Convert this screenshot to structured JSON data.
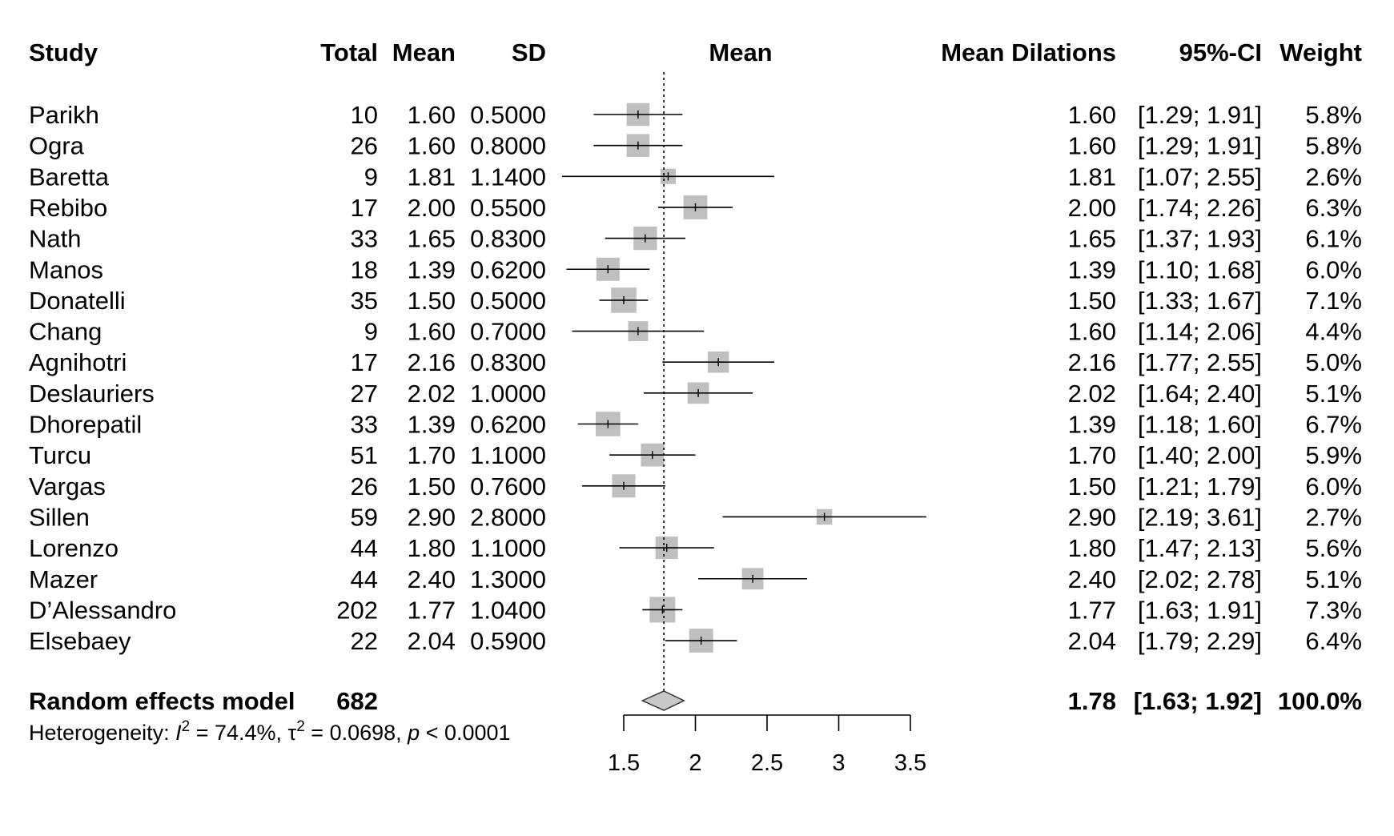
{
  "chart_data": {
    "type": "forest",
    "columns": {
      "study": "Study",
      "total": "Total",
      "mean": "Mean",
      "sd": "SD",
      "plot": "Mean",
      "effect": "Mean Dilations",
      "ci": "95%-CI",
      "weight": "Weight"
    },
    "studies": [
      {
        "study": "Parikh",
        "total": "10",
        "mean": "1.60",
        "sd": "0.5000",
        "est": 1.6,
        "lower": 1.29,
        "upper": 1.91,
        "effect": "1.60",
        "ci": "[1.29; 1.91]",
        "weight": "5.8%",
        "w": 5.8
      },
      {
        "study": "Ogra",
        "total": "26",
        "mean": "1.60",
        "sd": "0.8000",
        "est": 1.6,
        "lower": 1.29,
        "upper": 1.91,
        "effect": "1.60",
        "ci": "[1.29; 1.91]",
        "weight": "5.8%",
        "w": 5.8
      },
      {
        "study": "Baretta",
        "total": "9",
        "mean": "1.81",
        "sd": "1.1400",
        "est": 1.81,
        "lower": 1.07,
        "upper": 2.55,
        "effect": "1.81",
        "ci": "[1.07; 2.55]",
        "weight": "2.6%",
        "w": 2.6
      },
      {
        "study": "Rebibo",
        "total": "17",
        "mean": "2.00",
        "sd": "0.5500",
        "est": 2.0,
        "lower": 1.74,
        "upper": 2.26,
        "effect": "2.00",
        "ci": "[1.74; 2.26]",
        "weight": "6.3%",
        "w": 6.3
      },
      {
        "study": "Nath",
        "total": "33",
        "mean": "1.65",
        "sd": "0.8300",
        "est": 1.65,
        "lower": 1.37,
        "upper": 1.93,
        "effect": "1.65",
        "ci": "[1.37; 1.93]",
        "weight": "6.1%",
        "w": 6.1
      },
      {
        "study": "Manos",
        "total": "18",
        "mean": "1.39",
        "sd": "0.6200",
        "est": 1.39,
        "lower": 1.1,
        "upper": 1.68,
        "effect": "1.39",
        "ci": "[1.10; 1.68]",
        "weight": "6.0%",
        "w": 6.0
      },
      {
        "study": "Donatelli",
        "total": "35",
        "mean": "1.50",
        "sd": "0.5000",
        "est": 1.5,
        "lower": 1.33,
        "upper": 1.67,
        "effect": "1.50",
        "ci": "[1.33; 1.67]",
        "weight": "7.1%",
        "w": 7.1
      },
      {
        "study": "Chang",
        "total": "9",
        "mean": "1.60",
        "sd": "0.7000",
        "est": 1.6,
        "lower": 1.14,
        "upper": 2.06,
        "effect": "1.60",
        "ci": "[1.14; 2.06]",
        "weight": "4.4%",
        "w": 4.4
      },
      {
        "study": "Agnihotri",
        "total": "17",
        "mean": "2.16",
        "sd": "0.8300",
        "est": 2.16,
        "lower": 1.77,
        "upper": 2.55,
        "effect": "2.16",
        "ci": "[1.77; 2.55]",
        "weight": "5.0%",
        "w": 5.0
      },
      {
        "study": "Deslauriers",
        "total": "27",
        "mean": "2.02",
        "sd": "1.0000",
        "est": 2.02,
        "lower": 1.64,
        "upper": 2.4,
        "effect": "2.02",
        "ci": "[1.64; 2.40]",
        "weight": "5.1%",
        "w": 5.1
      },
      {
        "study": "Dhorepatil",
        "total": "33",
        "mean": "1.39",
        "sd": "0.6200",
        "est": 1.39,
        "lower": 1.18,
        "upper": 1.6,
        "effect": "1.39",
        "ci": "[1.18; 1.60]",
        "weight": "6.7%",
        "w": 6.7
      },
      {
        "study": "Turcu",
        "total": "51",
        "mean": "1.70",
        "sd": "1.1000",
        "est": 1.7,
        "lower": 1.4,
        "upper": 2.0,
        "effect": "1.70",
        "ci": "[1.40; 2.00]",
        "weight": "5.9%",
        "w": 5.9
      },
      {
        "study": "Vargas",
        "total": "26",
        "mean": "1.50",
        "sd": "0.7600",
        "est": 1.5,
        "lower": 1.21,
        "upper": 1.79,
        "effect": "1.50",
        "ci": "[1.21; 1.79]",
        "weight": "6.0%",
        "w": 6.0
      },
      {
        "study": "Sillen",
        "total": "59",
        "mean": "2.90",
        "sd": "2.8000",
        "est": 2.9,
        "lower": 2.19,
        "upper": 3.61,
        "effect": "2.90",
        "ci": "[2.19; 3.61]",
        "weight": "2.7%",
        "w": 2.7
      },
      {
        "study": "Lorenzo",
        "total": "44",
        "mean": "1.80",
        "sd": "1.1000",
        "est": 1.8,
        "lower": 1.47,
        "upper": 2.13,
        "effect": "1.80",
        "ci": "[1.47; 2.13]",
        "weight": "5.6%",
        "w": 5.6
      },
      {
        "study": "Mazer",
        "total": "44",
        "mean": "2.40",
        "sd": "1.3000",
        "est": 2.4,
        "lower": 2.02,
        "upper": 2.78,
        "effect": "2.40",
        "ci": "[2.02; 2.78]",
        "weight": "5.1%",
        "w": 5.1
      },
      {
        "study": "D’Alessandro",
        "total": "202",
        "mean": "1.77",
        "sd": "1.0400",
        "est": 1.77,
        "lower": 1.63,
        "upper": 1.91,
        "effect": "1.77",
        "ci": "[1.63; 1.91]",
        "weight": "7.3%",
        "w": 7.3
      },
      {
        "study": "Elsebaey",
        "total": "22",
        "mean": "2.04",
        "sd": "0.5900",
        "est": 2.04,
        "lower": 1.79,
        "upper": 2.29,
        "effect": "2.04",
        "ci": "[1.79; 2.29]",
        "weight": "6.4%",
        "w": 6.4
      }
    ],
    "pooled": {
      "label": "Random effects model",
      "total": "682",
      "est": 1.78,
      "lower": 1.63,
      "upper": 1.92,
      "effect": "1.78",
      "ci": "[1.63; 1.92]",
      "weight": "100.0%"
    },
    "heterogeneity": {
      "prefix": "Heterogeneity: ",
      "i2_symbol": "I",
      "i2_value": " = 74.4%, ",
      "tau2_symbol": "τ",
      "tau2_value": " = 0.0698, ",
      "p_symbol": "p",
      "p_value": " < 0.0001"
    },
    "x_axis": {
      "ticks": [
        1.5,
        2,
        2.5,
        3,
        3.5
      ],
      "tick_labels": [
        "1.5",
        "2",
        "2.5",
        "3",
        "3.5"
      ],
      "range": [
        1.5,
        3.5
      ]
    },
    "reference_line": 1.78,
    "colors": {
      "square": "#bfbfbf",
      "diamond": "#c8c8c8",
      "line": "#000000"
    }
  }
}
